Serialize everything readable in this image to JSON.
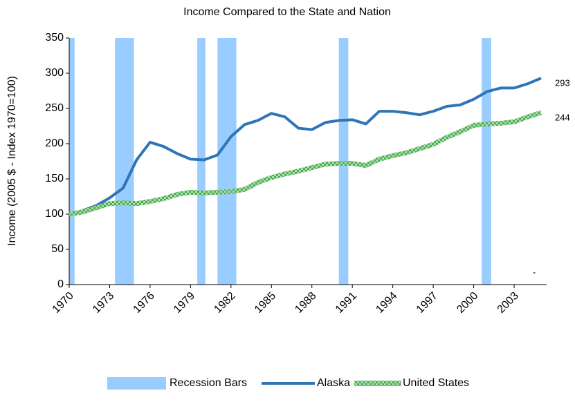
{
  "chart_data": {
    "type": "line",
    "title": "Income Compared to the State and Nation",
    "y_label": "Income (2005 $ - Index 1970=100)",
    "xlim": [
      1970,
      2005
    ],
    "xticks": [
      1970,
      1973,
      1976,
      1979,
      1982,
      1985,
      1988,
      1991,
      1994,
      1997,
      2000,
      2003
    ],
    "ylim": [
      0,
      350
    ],
    "yticks": [
      0,
      50,
      100,
      150,
      200,
      250,
      300,
      350
    ],
    "x": [
      1970,
      1971,
      1972,
      1973,
      1974,
      1975,
      1976,
      1977,
      1978,
      1979,
      1980,
      1981,
      1982,
      1983,
      1984,
      1985,
      1986,
      1987,
      1988,
      1989,
      1990,
      1991,
      1992,
      1993,
      1994,
      1995,
      1996,
      1997,
      1998,
      1999,
      2000,
      2001,
      2002,
      2003,
      2004,
      2005
    ],
    "recessions": {
      "name": "Recession Bars",
      "color": "#99ccff",
      "x_start": [
        1970,
        1973.4,
        1979.5,
        1981,
        1990,
        2000.6
      ],
      "x_end": [
        1970.4,
        1974.8,
        1980.1,
        1982.4,
        1990.7,
        2001.3
      ],
      "values": [
        350,
        350,
        350,
        350,
        350,
        350
      ]
    },
    "series": [
      {
        "name": "Alaska",
        "color": "#2e75b6",
        "values": [
          100,
          105,
          112,
          123,
          137,
          177,
          202,
          196,
          186,
          178,
          177,
          184,
          210,
          227,
          233,
          243,
          238,
          222,
          220,
          230,
          233,
          234,
          228,
          246,
          246,
          244,
          241,
          246,
          253,
          255,
          263,
          274,
          279,
          279,
          285,
          293
        ]
      },
      {
        "name": "United States",
        "color": "#4caf50",
        "values": [
          100,
          103,
          109,
          115,
          116,
          115,
          118,
          122,
          128,
          131,
          130,
          131,
          132,
          135,
          145,
          152,
          157,
          161,
          166,
          171,
          172,
          172,
          169,
          178,
          183,
          187,
          193,
          199,
          209,
          217,
          226,
          228,
          229,
          231,
          238,
          244
        ]
      }
    ],
    "annotations": [
      "-"
    ]
  }
}
